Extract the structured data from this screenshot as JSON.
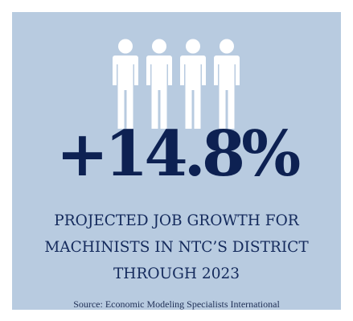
{
  "colors": {
    "background": "#b8cbe0",
    "headline": "#0d2152",
    "caption": "#142a5c",
    "icon": "#ffffff",
    "source": "#1f2f55"
  },
  "icon": {
    "name": "people-icon",
    "count": 4
  },
  "stat": {
    "value": "+14.8%"
  },
  "caption": {
    "lines": [
      "PROJECTED JOB GROWTH FOR",
      "MACHINISTS IN NTC’S DISTRICT",
      "THROUGH 2023"
    ]
  },
  "source": {
    "text": "Source: Economic Modeling Specialists International"
  }
}
